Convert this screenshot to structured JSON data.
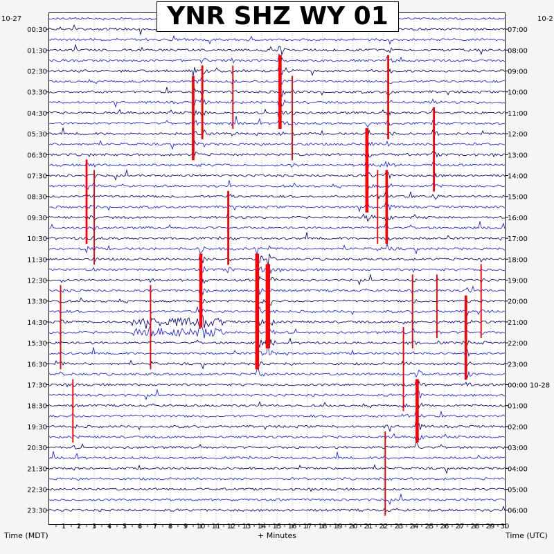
{
  "title": "YNR SHZ WY 01",
  "start_date_left": "10-27",
  "start_date_right": "10-2",
  "xlabel": "+ Minutes",
  "left_axis_label": "Time (MDT)",
  "right_axis_label": "Time (UTC)",
  "colors": {
    "dark_trace": "#0a0a7a",
    "light_trace": "#1e28e8",
    "event_marker": "#ff0000",
    "grid": "#999999"
  },
  "chart_data": {
    "type": "line",
    "title": "YNR SHZ WY 01",
    "xlabel": "+ Minutes",
    "xlim": [
      0,
      30
    ],
    "x_ticks": [
      "1",
      "2",
      "3",
      "4",
      "5",
      "6",
      "7",
      "8",
      "9",
      "10",
      "11",
      "12",
      "13",
      "14",
      "15",
      "16",
      "17",
      "18",
      "19",
      "20",
      "21",
      "22",
      "23",
      "24",
      "25",
      "26",
      "27",
      "28",
      "29",
      "30"
    ],
    "left_ticks": [
      "00:30",
      "01:30",
      "02:30",
      "03:30",
      "04:30",
      "05:30",
      "06:30",
      "07:30",
      "08:30",
      "09:30",
      "10:30",
      "11:30",
      "12:30",
      "13:30",
      "14:30",
      "15:30",
      "16:30",
      "17:30",
      "18:30",
      "19:30",
      "20:30",
      "21:30",
      "22:30",
      "23:30"
    ],
    "right_ticks": [
      "07:00",
      "08:00",
      "09:00",
      "10:00",
      "11:00",
      "12:00",
      "13:00",
      "14:00",
      "15:00",
      "16:00",
      "17:00",
      "18:00",
      "19:00",
      "20:00",
      "21:00",
      "22:00",
      "23:00",
      "00:00 10-28",
      "01:00",
      "02:00",
      "03:00",
      "04:00",
      "05:00",
      "06:00"
    ],
    "trace_count": 48,
    "noisy_window": {
      "trace_start": 29,
      "trace_end": 30,
      "x_start": 5.5,
      "x_end": 11.5
    },
    "events": [
      {
        "minute": 9.5,
        "trace_start": 6,
        "trace_end": 13,
        "strength": 3
      },
      {
        "minute": 10.1,
        "trace_start": 5,
        "trace_end": 11,
        "strength": 2
      },
      {
        "minute": 12.1,
        "trace_start": 5,
        "trace_end": 10,
        "strength": 1
      },
      {
        "minute": 15.2,
        "trace_start": 4,
        "trace_end": 10,
        "strength": 4
      },
      {
        "minute": 16.0,
        "trace_start": 6,
        "trace_end": 13,
        "strength": 1
      },
      {
        "minute": 22.3,
        "trace_start": 4,
        "trace_end": 11,
        "strength": 2
      },
      {
        "minute": 20.9,
        "trace_start": 11,
        "trace_end": 18,
        "strength": 4
      },
      {
        "minute": 25.3,
        "trace_start": 9,
        "trace_end": 16,
        "strength": 2
      },
      {
        "minute": 22.2,
        "trace_start": 15,
        "trace_end": 21,
        "strength": 3
      },
      {
        "minute": 21.6,
        "trace_start": 15,
        "trace_end": 21,
        "strength": 1
      },
      {
        "minute": 2.5,
        "trace_start": 14,
        "trace_end": 21,
        "strength": 2
      },
      {
        "minute": 3.0,
        "trace_start": 15,
        "trace_end": 23,
        "strength": 1
      },
      {
        "minute": 11.8,
        "trace_start": 17,
        "trace_end": 23,
        "strength": 2
      },
      {
        "minute": 10.0,
        "trace_start": 23,
        "trace_end": 29,
        "strength": 4
      },
      {
        "minute": 13.7,
        "trace_start": 23,
        "trace_end": 33,
        "strength": 5
      },
      {
        "minute": 14.4,
        "trace_start": 24,
        "trace_end": 31,
        "strength": 6
      },
      {
        "minute": 0.8,
        "trace_start": 26,
        "trace_end": 33,
        "strength": 1
      },
      {
        "minute": 6.7,
        "trace_start": 26,
        "trace_end": 33,
        "strength": 1
      },
      {
        "minute": 23.9,
        "trace_start": 25,
        "trace_end": 31,
        "strength": 1
      },
      {
        "minute": 25.5,
        "trace_start": 25,
        "trace_end": 30,
        "strength": 1
      },
      {
        "minute": 27.4,
        "trace_start": 27,
        "trace_end": 34,
        "strength": 3
      },
      {
        "minute": 28.4,
        "trace_start": 24,
        "trace_end": 30,
        "strength": 1
      },
      {
        "minute": 23.3,
        "trace_start": 30,
        "trace_end": 37,
        "strength": 1
      },
      {
        "minute": 24.2,
        "trace_start": 35,
        "trace_end": 40,
        "strength": 4
      },
      {
        "minute": 1.6,
        "trace_start": 35,
        "trace_end": 40,
        "strength": 1
      },
      {
        "minute": 22.1,
        "trace_start": 40,
        "trace_end": 47,
        "strength": 1
      }
    ]
  }
}
